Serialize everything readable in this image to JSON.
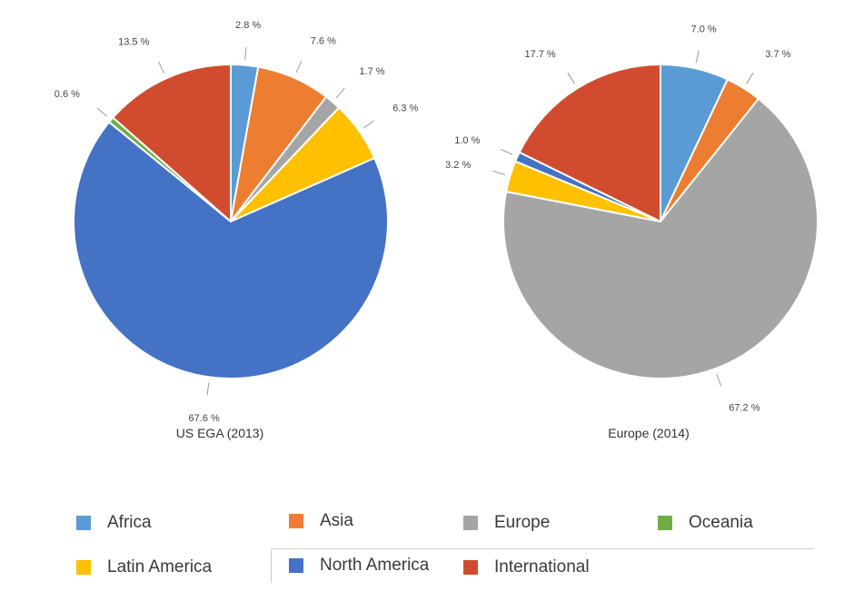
{
  "chart_data": [
    {
      "type": "pie",
      "title": "US EGA (2013)",
      "slices": [
        {
          "category": "Africa",
          "value": 2.8,
          "label": "2.8 %"
        },
        {
          "category": "Asia",
          "value": 7.6,
          "label": "7.6 %"
        },
        {
          "category": "Europe",
          "value": 1.7,
          "label": "1.7 %"
        },
        {
          "category": "Latin America",
          "value": 6.3,
          "label": "6.3 %"
        },
        {
          "category": "North America",
          "value": 67.6,
          "label": "67.6 %"
        },
        {
          "category": "Oceania",
          "value": 0.6,
          "label": "0.6 %"
        },
        {
          "category": "International",
          "value": 13.5,
          "label": "13.5 %"
        }
      ]
    },
    {
      "type": "pie",
      "title": "Europe (2014)",
      "slices": [
        {
          "category": "Africa",
          "value": 7.0,
          "label": "7.0 %"
        },
        {
          "category": "Asia",
          "value": 3.7,
          "label": "3.7 %"
        },
        {
          "category": "Europe",
          "value": 67.2,
          "label": "67.2 %"
        },
        {
          "category": "Latin America",
          "value": 3.2,
          "label": "3.2 %"
        },
        {
          "category": "North America",
          "value": 1.0,
          "label": "1.0 %"
        },
        {
          "category": "International",
          "value": 17.7,
          "label": "17.7 %"
        }
      ]
    }
  ],
  "legend": {
    "items": [
      {
        "label": "Africa",
        "color": "#5b9bd5"
      },
      {
        "label": "Asia",
        "color": "#ed7d31"
      },
      {
        "label": "Europe",
        "color": "#a5a5a5"
      },
      {
        "label": "Oceania",
        "color": "#70ad47"
      },
      {
        "label": "Latin America",
        "color": "#ffc000"
      },
      {
        "label": "North America",
        "color": "#4472c4"
      },
      {
        "label": "International",
        "color": "#d14c2e"
      }
    ]
  },
  "colors": {
    "Africa": "#5b9bd5",
    "Asia": "#ed7d31",
    "Europe": "#a5a5a5",
    "Oceania": "#70ad47",
    "Latin America": "#ffc000",
    "North America": "#4472c4",
    "International": "#d14c2e"
  }
}
